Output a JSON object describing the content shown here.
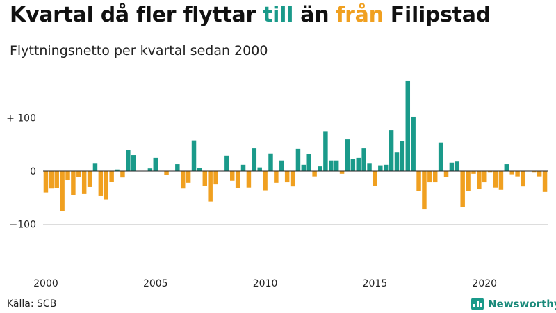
{
  "title": {
    "part1": "Kvartal då fler flyttar ",
    "in_word": "till",
    "part2": " än ",
    "out_word": "från",
    "part3": " Filipstad"
  },
  "subtitle": "Flyttningsnetto per kvartal sedan 2000",
  "source": "Källa: SCB",
  "brand": "Newsworthy",
  "colors": {
    "positive": "#1a9a8a",
    "negative": "#f0a020",
    "grid": "#dddddd",
    "zero_line": "#222222",
    "brand": "#1a8a7a"
  },
  "chart_data": {
    "type": "bar",
    "x_start": "2000 Q1",
    "x_ticks": [
      "2000",
      "2005",
      "2010",
      "2015",
      "2020"
    ],
    "y_ticks": [
      {
        "value": 100,
        "label": "+ 100"
      },
      {
        "value": 0,
        "label": "0"
      },
      {
        "value": -100,
        "label": "−100"
      }
    ],
    "ylim": [
      -190,
      175
    ],
    "grid": true,
    "values": [
      -40,
      -33,
      -32,
      -75,
      -17,
      -45,
      -11,
      -43,
      -30,
      14,
      -47,
      -53,
      -20,
      3,
      -12,
      40,
      30,
      0,
      0,
      5,
      25,
      0,
      -7,
      0,
      13,
      -33,
      -22,
      58,
      6,
      -28,
      -57,
      -25,
      0,
      29,
      -18,
      -32,
      12,
      -31,
      43,
      7,
      -36,
      33,
      -22,
      20,
      -21,
      -29,
      42,
      12,
      32,
      -10,
      9,
      74,
      20,
      20,
      -5,
      60,
      23,
      25,
      43,
      14,
      -28,
      11,
      12,
      77,
      35,
      57,
      170,
      102,
      -37,
      -72,
      -21,
      -21,
      54,
      -11,
      16,
      18,
      -67,
      -37,
      -5,
      -34,
      -21,
      -3,
      -31,
      -35,
      13,
      -6,
      -10,
      -29,
      0,
      -3,
      -10,
      -39
    ]
  }
}
